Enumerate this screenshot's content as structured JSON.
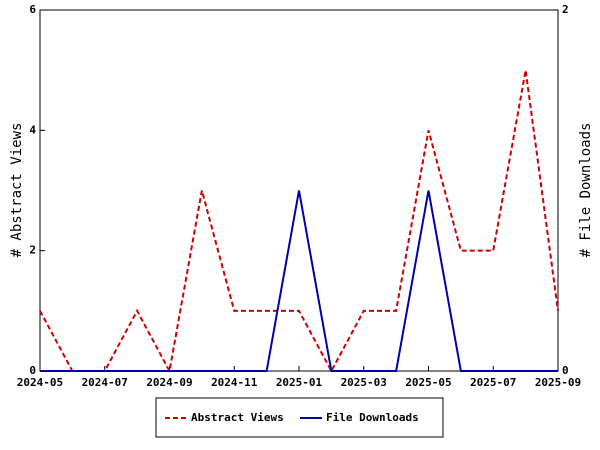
{
  "chart_data": {
    "type": "line",
    "x": [
      "2024-05",
      "2024-06",
      "2024-07",
      "2024-08",
      "2024-09",
      "2024-10",
      "2024-11",
      "2024-12",
      "2025-01",
      "2025-02",
      "2025-03",
      "2025-04",
      "2025-05",
      "2025-06",
      "2025-07",
      "2025-08",
      "2025-09"
    ],
    "xlim": [
      "2024-05",
      "2025-09"
    ],
    "xticks": [
      "2024-05",
      "2024-07",
      "2024-09",
      "2024-11",
      "2025-01",
      "2025-03",
      "2025-05",
      "2025-07",
      "2025-09"
    ],
    "y_label": "# Abstract Views",
    "y2_label": "# File Downloads",
    "ylim": [
      0,
      6
    ],
    "yticks": [
      0,
      2,
      4,
      6
    ],
    "y2lim": [
      0,
      2
    ],
    "y2ticks": [
      0,
      2
    ],
    "legend": "bottom",
    "series": [
      {
        "name": "Abstract Views",
        "color": "#cc0000",
        "dash": true,
        "values": [
          1,
          0,
          0,
          1,
          0,
          3,
          1,
          1,
          1,
          0,
          1,
          1,
          4,
          2,
          2,
          5,
          1
        ]
      },
      {
        "name": "File Downloads",
        "color": "#0000aa",
        "axis": "y2",
        "values": [
          0,
          0,
          0,
          0,
          0,
          0,
          0,
          0,
          1,
          0,
          0,
          0,
          1,
          0,
          0,
          0,
          0
        ]
      }
    ]
  }
}
